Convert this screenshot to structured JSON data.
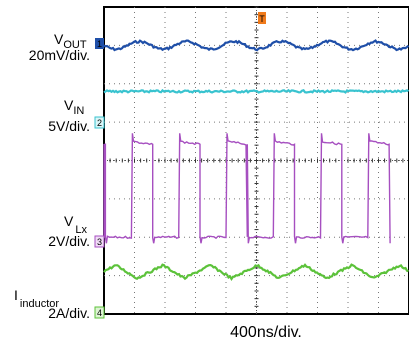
{
  "chart_data": {
    "type": "line",
    "title": "",
    "xlabel": "400ns/div.",
    "x_divisions": 10,
    "y_divisions": 8,
    "grid": true,
    "trigger_marker": "T",
    "series": [
      {
        "name": "VOUT",
        "label_main": "V",
        "label_sub": "OUT",
        "scale": "20mV/div.",
        "marker": "1",
        "color": "#1f4fa8",
        "level_div": 7.0,
        "waveform": "ripple",
        "amplitude_div": 0.1
      },
      {
        "name": "VIN",
        "label_main": "V",
        "label_sub": "IN",
        "scale": "5V/div.",
        "marker": "2",
        "color": "#39c3cf",
        "level_div": 5.8,
        "waveform": "flat",
        "amplitude_div": 0.0
      },
      {
        "name": "VLx",
        "label_main": "V",
        "label_sub": "Lx",
        "scale": "2V/div.",
        "marker": "3",
        "color": "#a64fc0",
        "low_div": 2.0,
        "high_div": 4.5,
        "waveform": "square",
        "period_div": 1.55,
        "duty": 0.45,
        "phase_div": 0.9
      },
      {
        "name": "I_inductor",
        "label_main": "I",
        "label_sub": "inductor",
        "scale": "2A/div.",
        "marker": "4",
        "color": "#5cc23a",
        "level_div": 1.1,
        "waveform": "triangle",
        "amplitude_div": 0.17,
        "period_div": 1.55
      }
    ]
  }
}
